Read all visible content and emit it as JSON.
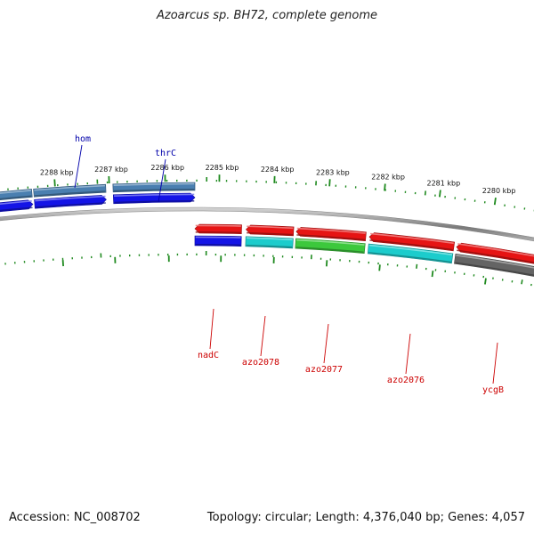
{
  "title": "Azoarcus sp. BH72, complete genome",
  "footer": {
    "accession": "Accession: NC_008702",
    "stats": "Topology: circular; Length: 4,376,040 bp; Genes: 4,057"
  },
  "colors": {
    "backbone": "#8c8c8c",
    "tick": "#1f8a1f",
    "forward_label": "#0000aa",
    "reverse_label": "#cc0000",
    "blue": "#1414e6",
    "steelblue": "#4a7fb0",
    "red": "#e61414",
    "green": "#3cc83c",
    "cyan": "#1ccccc",
    "gray": "#646464"
  },
  "scale": {
    "unit": "kbp",
    "labels": [
      "2288 kbp",
      "2287 kbp",
      "2286 kbp",
      "2285 kbp",
      "2284 kbp",
      "2283 kbp",
      "2282 kbp",
      "2281 kbp",
      "2280 kbp"
    ]
  },
  "tracks": {
    "forward_outer": [
      {
        "color": "steelblue",
        "segment": 0
      },
      {
        "color": "steelblue",
        "segment": 1
      },
      {
        "color": "steelblue",
        "segment": 2
      }
    ],
    "forward_inner": [
      {
        "color": "blue",
        "segment": 0
      },
      {
        "color": "blue",
        "segment": 1
      },
      {
        "color": "blue",
        "segment": 2
      }
    ],
    "reverse_inner": [
      {
        "color": "red",
        "segment": 3
      },
      {
        "color": "red",
        "segment": 4
      },
      {
        "color": "red",
        "segment": 5
      },
      {
        "color": "red",
        "segment": 6
      },
      {
        "color": "red",
        "segment": 7
      }
    ],
    "reverse_outer": [
      {
        "color": "blue",
        "segment": 3
      },
      {
        "color": "cyan",
        "segment": 4
      },
      {
        "color": "green",
        "segment": 5
      },
      {
        "color": "cyan",
        "segment": 6
      },
      {
        "color": "gray",
        "segment": 7
      }
    ]
  },
  "gene_labels": [
    {
      "name": "hom",
      "strand": "forward"
    },
    {
      "name": "thrC",
      "strand": "forward"
    },
    {
      "name": "nadC",
      "strand": "reverse"
    },
    {
      "name": "azo2078",
      "strand": "reverse"
    },
    {
      "name": "azo2077",
      "strand": "reverse"
    },
    {
      "name": "azo2076",
      "strand": "reverse"
    },
    {
      "name": "ycgB",
      "strand": "reverse"
    }
  ]
}
